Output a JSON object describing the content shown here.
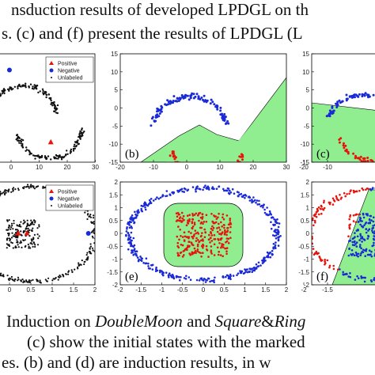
{
  "caption_top": [
    "nsduction results of developed LPDGL on th",
    "s. (c) and (f) present the results of LPDGL (L"
  ],
  "caption_bottom": [
    {
      "segments": [
        {
          "text": "Induction on ",
          "italic": false
        },
        {
          "text": "DoubleMoon",
          "italic": true
        },
        {
          "text": " and ",
          "italic": false
        },
        {
          "text": "Square",
          "italic": true
        },
        {
          "text": "&",
          "italic": false
        },
        {
          "text": "Ring",
          "italic": true
        }
      ]
    },
    {
      "segments": [
        {
          "text": "(c) show the initial states with the marked",
          "italic": false
        }
      ]
    },
    {
      "segments": [
        {
          "text": "es. (b) and (d) are induction results, in w",
          "italic": false
        }
      ]
    }
  ],
  "colors": {
    "positive": "#e8140c",
    "negative": "#1a2ad6",
    "unlabeled": "#111111",
    "region": "#90ee90"
  },
  "chart_data": [
    {
      "type": "scatter",
      "panel": "a",
      "label": "",
      "xticks": [
        "0",
        "10",
        "20",
        "30"
      ],
      "yticks": [],
      "legend": {
        "position": "top-right",
        "entries": [
          "Positive",
          "Negative",
          "Unlabeled"
        ]
      },
      "xlim": [
        -5,
        30
      ],
      "ylim": [
        -15,
        15
      ],
      "series": [
        {
          "name": "Positive",
          "points": [
            [
              14,
              -9.5
            ]
          ]
        },
        {
          "name": "Negative",
          "points": [
            [
              -1,
              10.5
            ]
          ]
        }
      ]
    },
    {
      "type": "scatter",
      "panel": "b",
      "label": "(b)",
      "xticks": [
        "-20",
        "-10",
        "0",
        "10",
        "20",
        "30"
      ],
      "yticks": [
        "15",
        "10",
        "5",
        "0",
        "-5",
        "-10",
        "-15"
      ],
      "xlim": [
        -20,
        30
      ],
      "ylim": [
        -15,
        15
      ]
    },
    {
      "type": "scatter",
      "panel": "c",
      "label": "(c)",
      "xticks": [
        "-20",
        "-10"
      ],
      "yticks": [
        "15",
        "10",
        "5",
        "0",
        "-5",
        "-10",
        "-15"
      ],
      "xlim": [
        -20,
        30
      ],
      "ylim": [
        -15,
        15
      ]
    },
    {
      "type": "scatter",
      "panel": "d",
      "label": "",
      "xticks": [
        "0",
        "0.5",
        "1",
        "1.5",
        "2"
      ],
      "yticks": [],
      "legend": {
        "position": "top-right",
        "entries": [
          "Positive",
          "Negative",
          "Unlabeled"
        ]
      },
      "xlim": [
        -0.2,
        2
      ],
      "ylim": [
        -2,
        2
      ],
      "series": [
        {
          "name": "Positive",
          "points": [
            [
              0.25,
              0
            ],
            [
              0.45,
              0
            ]
          ]
        },
        {
          "name": "Negative",
          "points": [
            [
              1.85,
              0
            ]
          ]
        }
      ]
    },
    {
      "type": "scatter",
      "panel": "e",
      "label": "(e)",
      "xticks": [
        "-2",
        "-1.5",
        "-1",
        "-0.5",
        "0",
        "0.5",
        "1",
        "1.5",
        "2"
      ],
      "yticks": [
        "2",
        "1.5",
        "1",
        "0.5",
        "0",
        "-0.5",
        "-1",
        "-1.5",
        "-2"
      ],
      "xlim": [
        -2,
        2
      ],
      "ylim": [
        -2,
        2
      ]
    },
    {
      "type": "scatter",
      "panel": "f",
      "label": "(f)",
      "xticks": [
        "-2",
        "-1.5"
      ],
      "yticks": [
        "2",
        "1.5",
        "1",
        "0.5",
        "0",
        "-0.5",
        "-1",
        "-1.5",
        "-2"
      ],
      "xlim": [
        -2,
        2
      ],
      "ylim": [
        -2,
        2
      ]
    }
  ]
}
